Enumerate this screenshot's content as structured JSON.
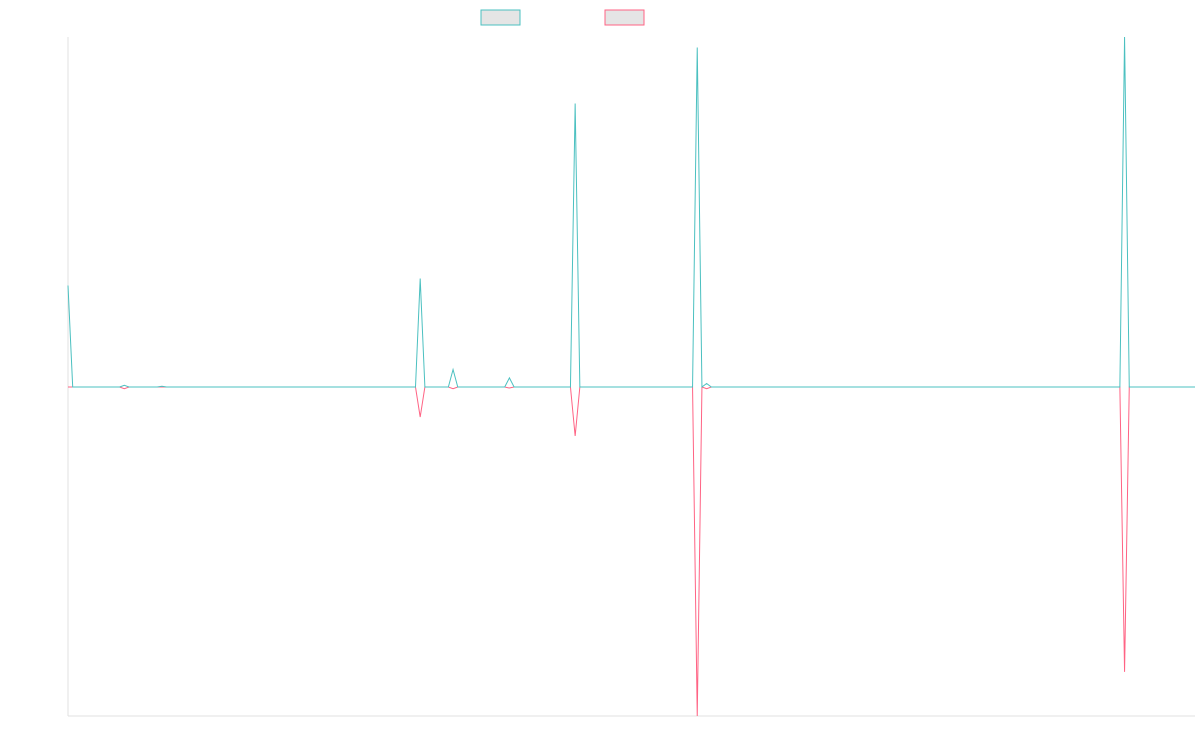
{
  "chart_data": {
    "type": "line",
    "title": "",
    "xlabel": "",
    "ylabel": "",
    "point_count": 241,
    "ylim": [
      -94,
      100
    ],
    "grid": false,
    "legend_position": "top",
    "series": [
      {
        "color": "#4bc0c0",
        "fill": "#e5e5e5",
        "points": [
          [
            0,
            29
          ],
          [
            12,
            0.5
          ],
          [
            20,
            0.2
          ],
          [
            75,
            31
          ],
          [
            82,
            5
          ],
          [
            94,
            2.6
          ],
          [
            108,
            81
          ],
          [
            134,
            97
          ],
          [
            136,
            1
          ],
          [
            225,
            100
          ]
        ]
      },
      {
        "color": "#ff6384",
        "fill": "#e5e5e5",
        "points": [
          [
            12,
            -0.5
          ],
          [
            75,
            -8.6
          ],
          [
            82,
            -0.5
          ],
          [
            94,
            -0.3
          ],
          [
            108,
            -14
          ],
          [
            134,
            -94
          ],
          [
            136,
            -0.5
          ],
          [
            225,
            -81.4
          ]
        ]
      }
    ]
  }
}
